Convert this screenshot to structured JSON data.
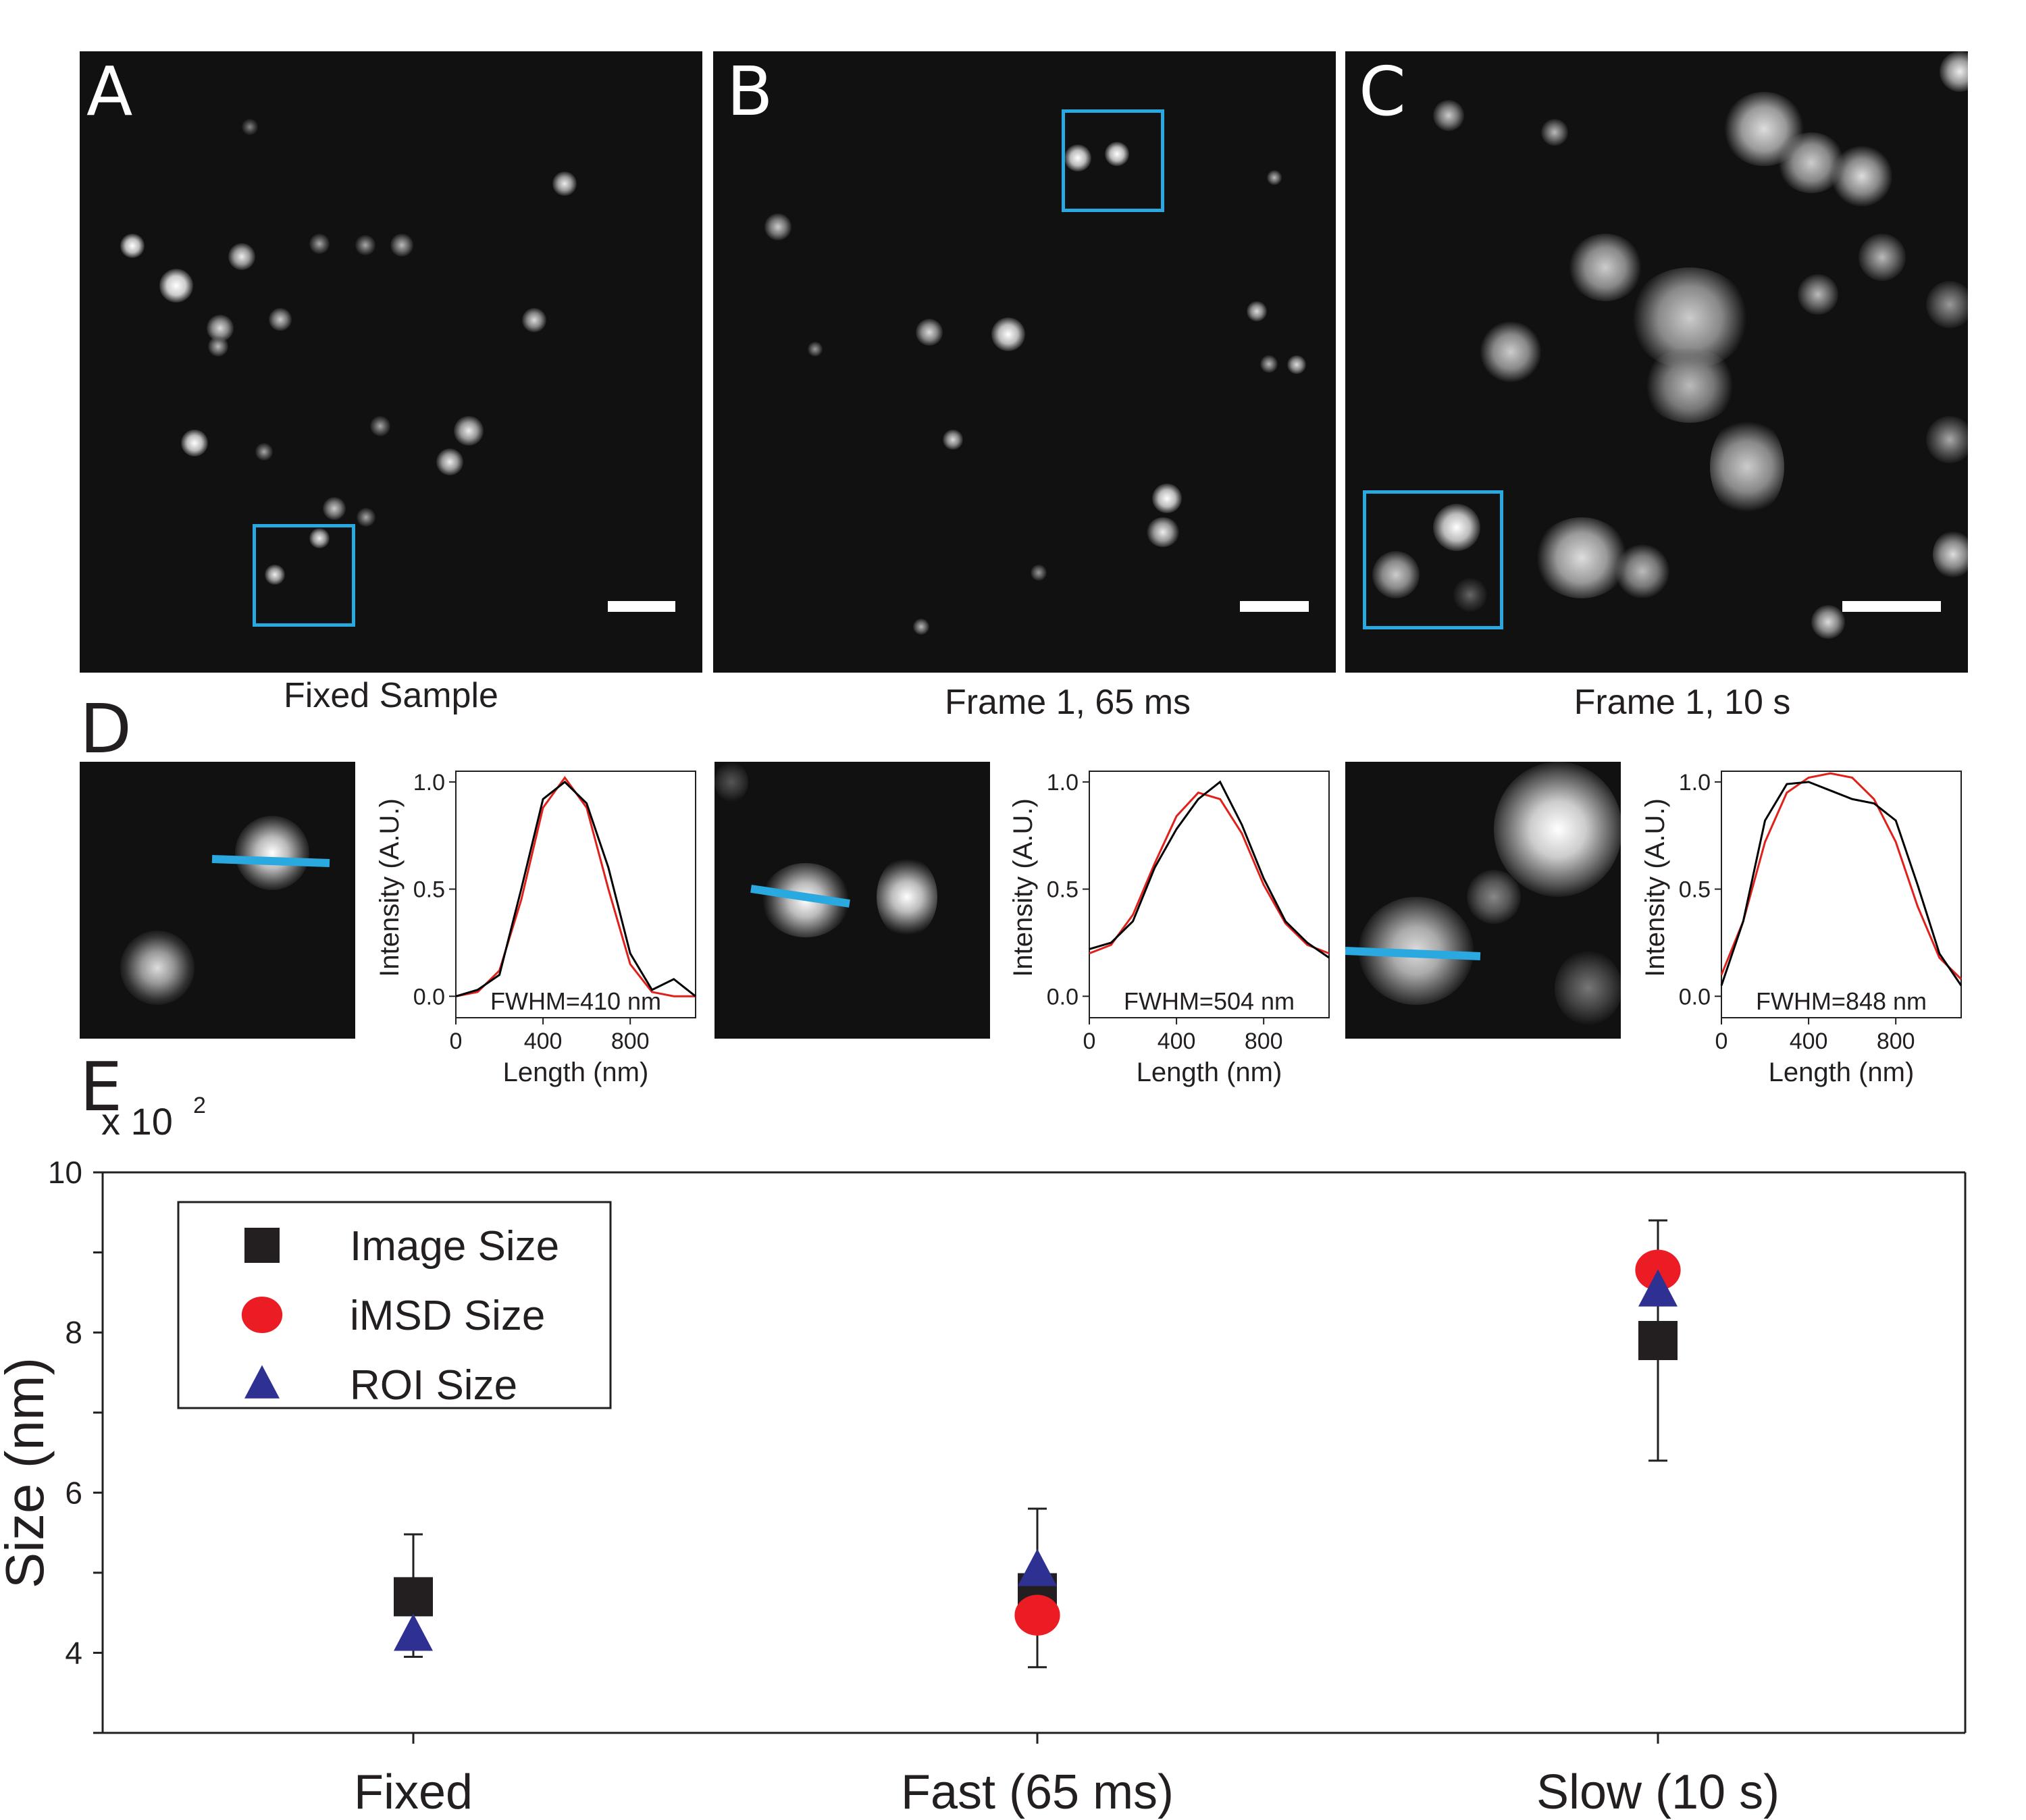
{
  "panels": {
    "A": {
      "letter": "A",
      "caption": "Fixed Sample"
    },
    "B": {
      "letter": "B",
      "caption": "Frame 1, 65 ms"
    },
    "C": {
      "letter": "C",
      "caption": "Frame 1, 10 s"
    },
    "D": {
      "letter": "D"
    },
    "E": {
      "letter": "E"
    }
  },
  "colors": {
    "roi": "#29a9e0",
    "profile_data": "#000000",
    "profile_fit": "#e0201b",
    "image_size": "#231f20",
    "imsd_size": "#ec1c24",
    "roi_size": "#2e3192"
  },
  "profiles": [
    {
      "ylabel": "Intensity (A.U.)",
      "xlabel": "Length (nm)",
      "fwhm": "FWHM=410 nm",
      "yticks": [
        "0.0",
        "0.5",
        "1.0"
      ],
      "xticks": [
        "0",
        "400",
        "800"
      ],
      "x": [
        0,
        100,
        200,
        300,
        400,
        500,
        600,
        700,
        800,
        900,
        1000,
        1100
      ],
      "data": [
        0.0,
        0.03,
        0.1,
        0.5,
        0.92,
        1.0,
        0.9,
        0.6,
        0.2,
        0.03,
        0.08,
        0.0
      ],
      "fit": [
        0.0,
        0.02,
        0.12,
        0.45,
        0.88,
        1.02,
        0.88,
        0.5,
        0.15,
        0.02,
        0.0,
        0.0
      ]
    },
    {
      "ylabel": "Intensity (A.U.)",
      "xlabel": "Length (nm)",
      "fwhm": "FWHM=504 nm",
      "yticks": [
        "0.0",
        "0.5",
        "1.0"
      ],
      "xticks": [
        "0",
        "400",
        "800"
      ],
      "x": [
        0,
        100,
        200,
        300,
        400,
        500,
        600,
        700,
        800,
        900,
        1000,
        1100
      ],
      "data": [
        0.22,
        0.25,
        0.35,
        0.6,
        0.78,
        0.92,
        1.0,
        0.8,
        0.55,
        0.35,
        0.25,
        0.18
      ],
      "fit": [
        0.2,
        0.24,
        0.38,
        0.62,
        0.84,
        0.95,
        0.92,
        0.76,
        0.52,
        0.34,
        0.24,
        0.2
      ]
    },
    {
      "ylabel": "Intensity (A.U.)",
      "xlabel": "Length (nm)",
      "fwhm": "FWHM=848 nm",
      "yticks": [
        "0.0",
        "0.5",
        "1.0"
      ],
      "xticks": [
        "0",
        "400",
        "800"
      ],
      "x": [
        0,
        100,
        200,
        300,
        400,
        500,
        600,
        700,
        800,
        900,
        1000,
        1100
      ],
      "data": [
        0.05,
        0.35,
        0.82,
        0.99,
        1.0,
        0.96,
        0.92,
        0.9,
        0.82,
        0.52,
        0.2,
        0.05
      ],
      "fit": [
        0.1,
        0.35,
        0.72,
        0.95,
        1.02,
        1.04,
        1.02,
        0.92,
        0.72,
        0.42,
        0.18,
        0.08
      ]
    }
  ],
  "chart_data": {
    "type": "scatter",
    "categories": [
      "Fixed",
      "Fast (65 ms)",
      "Slow (10 s)"
    ],
    "ylabel": "Size (nm)",
    "multiplier": "x 10",
    "multiplier_exp": "2",
    "ylim": [
      3,
      10
    ],
    "yticks": [
      "4",
      "6",
      "8",
      "10"
    ],
    "series": [
      {
        "name": "Image Size",
        "marker": "square",
        "values": [
          4.7,
          4.75,
          7.9
        ],
        "error_low": [
          3.95,
          3.82,
          6.4
        ],
        "error_high": [
          5.48,
          5.8,
          9.4
        ]
      },
      {
        "name": "iMSD Size",
        "marker": "circle",
        "values": [
          null,
          4.47,
          8.78
        ]
      },
      {
        "name": "ROI Size",
        "marker": "triangle",
        "values": [
          4.22,
          5.03,
          8.52
        ]
      }
    ],
    "legend_position": "top-left"
  }
}
